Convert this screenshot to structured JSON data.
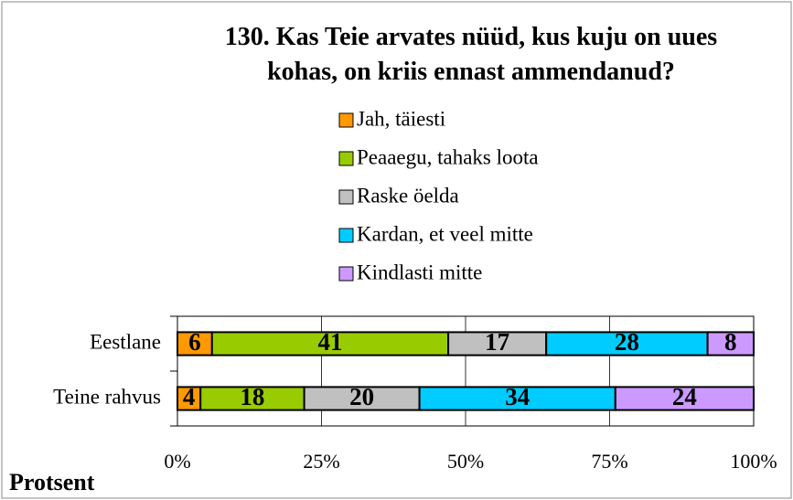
{
  "chart_data": {
    "type": "stacked_barh",
    "title": "130. Kas Teie arvates nüüd, kus kuju on uues kohas, on kriis ennast ammendanud?",
    "xlabel": "Protsent",
    "categories": [
      "Eestlane",
      "Teine rahvus"
    ],
    "series": [
      {
        "name": "Jah, täiesti",
        "color": "#ff9900",
        "values": [
          6,
          4
        ]
      },
      {
        "name": "Peaaegu, tahaks loota",
        "color": "#99cc00",
        "values": [
          41,
          18
        ]
      },
      {
        "name": "Raske öelda",
        "color": "#c0c0c0",
        "values": [
          17,
          20
        ]
      },
      {
        "name": "Kardan, et veel mitte",
        "color": "#00ccff",
        "values": [
          28,
          34
        ]
      },
      {
        "name": "Kindlasti mitte",
        "color": "#cc99ff",
        "values": [
          8,
          24
        ]
      }
    ],
    "xlim": [
      0,
      100
    ],
    "xticks": [
      {
        "value": 0,
        "label": "0%"
      },
      {
        "value": 25,
        "label": "25%"
      },
      {
        "value": 50,
        "label": "50%"
      },
      {
        "value": 75,
        "label": "75%"
      },
      {
        "value": 100,
        "label": "100%"
      }
    ],
    "grid": true
  }
}
